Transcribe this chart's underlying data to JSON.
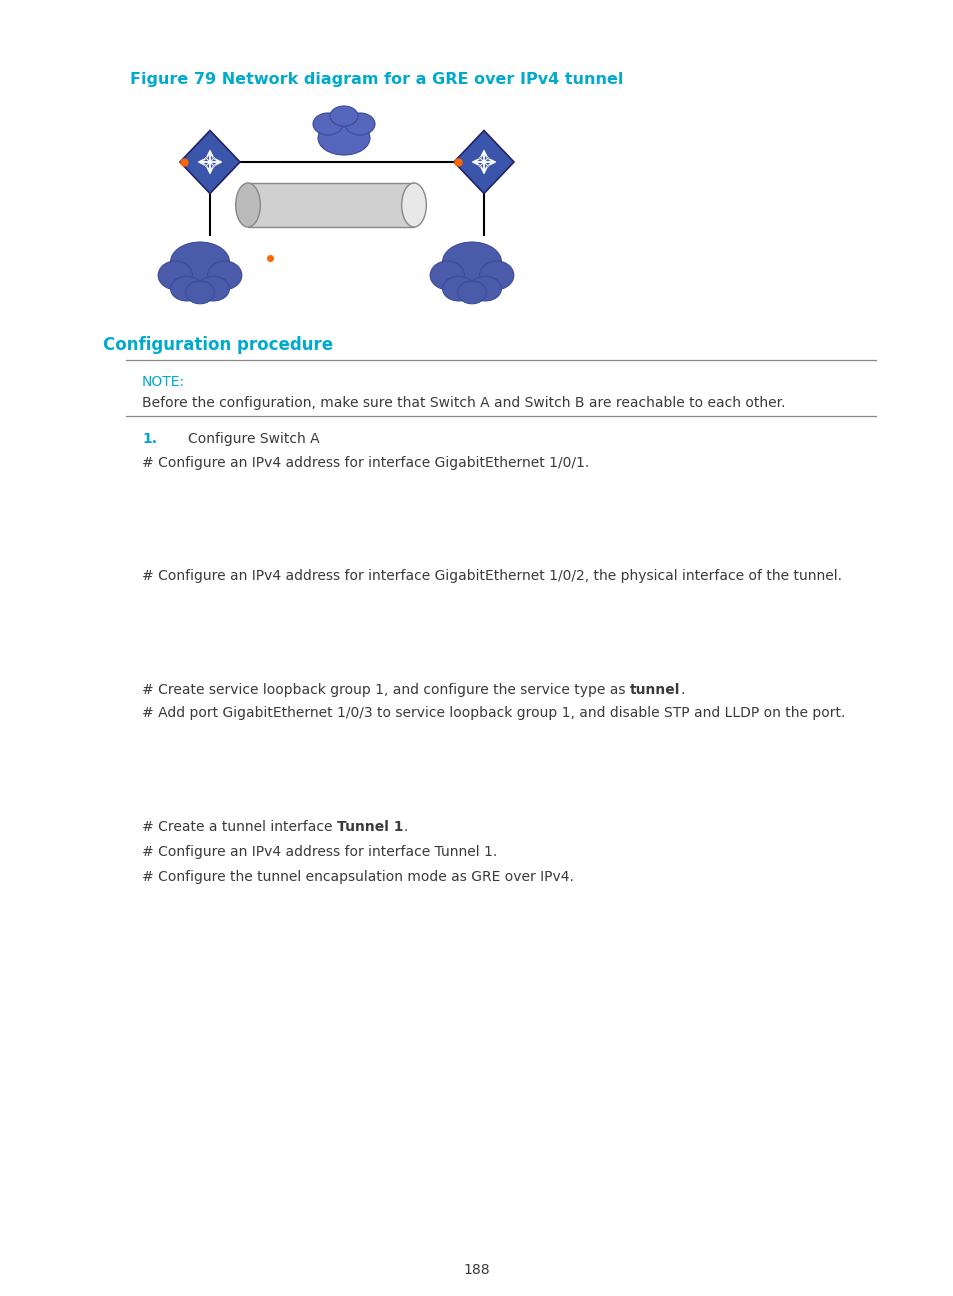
{
  "figure_title": "Figure 79 Network diagram for a GRE over IPv4 tunnel",
  "section_title": "Configuration procedure",
  "note_label": "NOTE:",
  "note_text": "Before the configuration, make sure that Switch A and Switch B are reachable to each other.",
  "step1_label": "1.",
  "step1_text": "Configure Switch A",
  "line1": "# Configure an IPv4 address for interface GigabitEthernet 1/0/1.",
  "line2": "# Configure an IPv4 address for interface GigabitEthernet 1/0/2, the physical interface of the tunnel.",
  "line3_normal": "# Create service loopback group 1, and configure the service type as ",
  "line3_bold": "tunnel",
  "line3_end": ".",
  "line4": "# Add port GigabitEthernet 1/0/3 to service loopback group 1, and disable STP and LLDP on the port.",
  "line5_normal": "# Create a tunnel interface ",
  "line5_bold": "Tunnel 1",
  "line5_end": ".",
  "line6": "# Configure an IPv4 address for interface Tunnel 1.",
  "line7": "# Configure the tunnel encapsulation mode as GRE over IPv4.",
  "page_number": "188",
  "title_color": "#00AACC",
  "section_color": "#00AACC",
  "note_color": "#00AACC",
  "step_color": "#00AACC",
  "text_color": "#3A3A3A",
  "bg_color": "#FFFFFF",
  "line_color": "#AAAAAA",
  "switch_color": "#3A55AA",
  "cloud_color": "#4A5BAA",
  "cyl_body": "#D0D0D0",
  "cyl_end": "#E8E8E8",
  "orange": "#FF6600"
}
